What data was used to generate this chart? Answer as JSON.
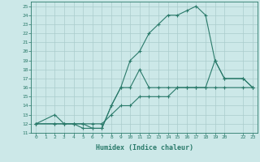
{
  "xlabel": "Humidex (Indice chaleur)",
  "ylabel": "",
  "background_color": "#cce8e8",
  "grid_color": "#aacccc",
  "line_color": "#2a7a6a",
  "xlim": [
    -0.5,
    23.5
  ],
  "ylim": [
    11,
    25.5
  ],
  "xticks": [
    0,
    1,
    2,
    3,
    4,
    5,
    6,
    7,
    8,
    9,
    10,
    11,
    12,
    13,
    14,
    15,
    16,
    17,
    18,
    19,
    20,
    22,
    23
  ],
  "yticks": [
    11,
    12,
    13,
    14,
    15,
    16,
    17,
    18,
    19,
    20,
    21,
    22,
    23,
    24,
    25
  ],
  "line1_x": [
    0,
    2,
    3,
    4,
    5,
    6,
    7,
    8,
    9,
    10,
    11,
    12,
    13,
    14,
    15,
    16,
    17,
    18,
    19,
    20,
    22,
    23
  ],
  "line1_y": [
    12,
    12,
    12,
    12,
    11.5,
    11.5,
    11.5,
    14,
    16,
    19,
    20,
    22,
    23,
    24,
    24,
    24.5,
    25,
    24,
    19,
    17,
    17,
    16
  ],
  "line2_x": [
    0,
    2,
    3,
    4,
    5,
    6,
    7,
    8,
    9,
    10,
    11,
    12,
    13,
    14,
    15,
    16,
    17,
    18,
    19,
    20,
    22,
    23
  ],
  "line2_y": [
    12,
    12,
    12,
    12,
    12,
    11.5,
    11.5,
    14,
    16,
    16,
    18,
    16,
    16,
    16,
    16,
    16,
    16,
    16,
    19,
    17,
    17,
    16
  ],
  "line3_x": [
    0,
    2,
    3,
    4,
    5,
    6,
    7,
    8,
    9,
    10,
    11,
    12,
    13,
    14,
    15,
    16,
    17,
    18,
    19,
    20,
    22,
    23
  ],
  "line3_y": [
    12,
    13,
    12,
    12,
    12,
    12,
    12,
    13,
    14,
    14,
    15,
    15,
    15,
    15,
    16,
    16,
    16,
    16,
    16,
    16,
    16,
    16
  ]
}
